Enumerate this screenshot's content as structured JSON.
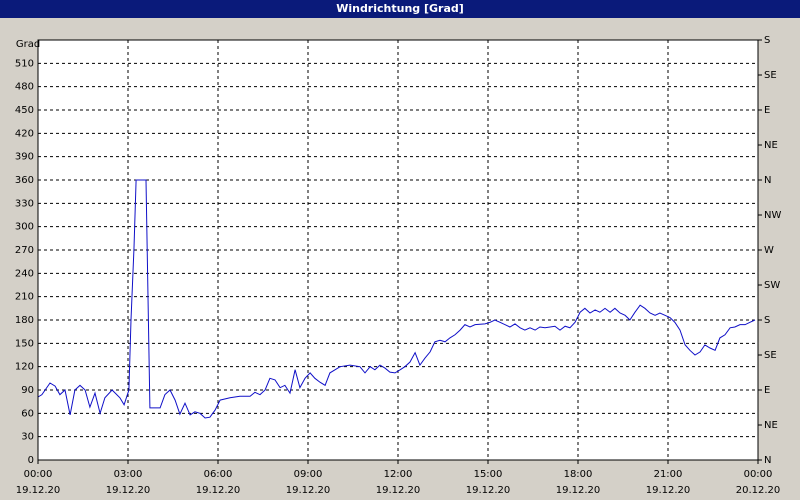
{
  "chart_data": {
    "type": "line",
    "title": "Windrichtung [Grad]",
    "y_label": "Grad",
    "color": "#1010c8",
    "grid": true,
    "xlim": [
      0,
      24
    ],
    "ylim": [
      0,
      540
    ],
    "y2lim": [
      0,
      540
    ],
    "xticks": [
      {
        "value": 0,
        "label": "00:00",
        "date": "19.12.20"
      },
      {
        "value": 3,
        "label": "03:00",
        "date": "19.12.20"
      },
      {
        "value": 6,
        "label": "06:00",
        "date": "19.12.20"
      },
      {
        "value": 9,
        "label": "09:00",
        "date": "19.12.20"
      },
      {
        "value": 12,
        "label": "12:00",
        "date": "19.12.20"
      },
      {
        "value": 15,
        "label": "15:00",
        "date": "19.12.20"
      },
      {
        "value": 18,
        "label": "18:00",
        "date": "19.12.20"
      },
      {
        "value": 21,
        "label": "21:00",
        "date": "19.12.20"
      },
      {
        "value": 24,
        "label": "00:00",
        "date": "20.12.20"
      }
    ],
    "yticks": [
      0,
      30,
      60,
      90,
      120,
      150,
      180,
      210,
      240,
      270,
      300,
      330,
      360,
      390,
      420,
      450,
      480,
      510
    ],
    "y2ticks": [
      {
        "value": 0,
        "label": "N"
      },
      {
        "value": 45,
        "label": "NE"
      },
      {
        "value": 90,
        "label": "E"
      },
      {
        "value": 135,
        "label": "SE"
      },
      {
        "value": 180,
        "label": "S"
      },
      {
        "value": 225,
        "label": "SW"
      },
      {
        "value": 270,
        "label": "W"
      },
      {
        "value": 315,
        "label": "NW"
      },
      {
        "value": 360,
        "label": "N"
      },
      {
        "value": 405,
        "label": "NE"
      },
      {
        "value": 450,
        "label": "E"
      },
      {
        "value": 495,
        "label": "SE"
      },
      {
        "value": 540,
        "label": "S"
      }
    ],
    "x": [
      0,
      0.13,
      0.4,
      0.57,
      0.73,
      0.9,
      1.07,
      1.23,
      1.4,
      1.57,
      1.73,
      1.9,
      2.07,
      2.23,
      2.47,
      2.73,
      2.87,
      3.03,
      3.1,
      3.2,
      3.27,
      3.6,
      3.73,
      3.9,
      4.07,
      4.23,
      4.4,
      4.57,
      4.73,
      4.9,
      5.07,
      5.23,
      5.4,
      5.57,
      5.73,
      5.9,
      6.07,
      6.4,
      6.73,
      7.07,
      7.23,
      7.4,
      7.57,
      7.73,
      7.9,
      8.07,
      8.23,
      8.4,
      8.57,
      8.73,
      8.9,
      9.07,
      9.23,
      9.4,
      9.57,
      9.73,
      10.07,
      10.4,
      10.73,
      10.9,
      11.07,
      11.23,
      11.4,
      11.57,
      11.73,
      11.9,
      12.07,
      12.23,
      12.4,
      12.57,
      12.73,
      12.9,
      13.07,
      13.23,
      13.4,
      13.57,
      13.73,
      13.9,
      14.07,
      14.23,
      14.4,
      14.57,
      14.9,
      15.07,
      15.23,
      15.4,
      15.57,
      15.73,
      15.9,
      16.07,
      16.23,
      16.4,
      16.57,
      16.73,
      16.9,
      17.07,
      17.23,
      17.4,
      17.57,
      17.73,
      17.9,
      18.07,
      18.23,
      18.4,
      18.57,
      18.73,
      18.9,
      19.07,
      19.23,
      19.4,
      19.57,
      19.73,
      19.9,
      20.07,
      20.23,
      20.4,
      20.57,
      20.73,
      20.9,
      21.07,
      21.23,
      21.4,
      21.57,
      21.73,
      21.9,
      22.07,
      22.23,
      22.4,
      22.57,
      22.73,
      22.9,
      23.07,
      23.23,
      23.4,
      23.57,
      23.73,
      23.9
    ],
    "values": [
      81,
      84,
      99,
      95,
      84,
      90,
      58,
      90,
      96,
      90,
      68,
      86,
      60,
      80,
      90,
      80,
      71,
      90,
      180,
      273,
      360,
      360,
      67,
      67,
      67,
      84,
      90,
      77,
      59,
      73,
      58,
      62,
      60,
      54,
      55,
      64,
      77,
      80,
      82,
      82,
      87,
      84,
      90,
      105,
      103,
      93,
      96,
      86,
      116,
      93,
      105,
      112,
      105,
      100,
      96,
      112,
      120,
      122,
      120,
      112,
      120,
      116,
      122,
      118,
      113,
      112,
      116,
      120,
      126,
      138,
      122,
      131,
      139,
      152,
      154,
      152,
      157,
      161,
      167,
      174,
      171,
      174,
      175,
      177,
      180,
      177,
      174,
      171,
      175,
      170,
      167,
      170,
      167,
      171,
      170,
      171,
      172,
      167,
      172,
      170,
      177,
      190,
      195,
      189,
      193,
      190,
      195,
      190,
      195,
      189,
      186,
      180,
      190,
      199,
      195,
      189,
      186,
      189,
      186,
      183,
      177,
      167,
      148,
      141,
      135,
      139,
      148,
      144,
      141,
      157,
      161,
      170,
      171,
      174,
      174,
      177,
      180
    ]
  }
}
